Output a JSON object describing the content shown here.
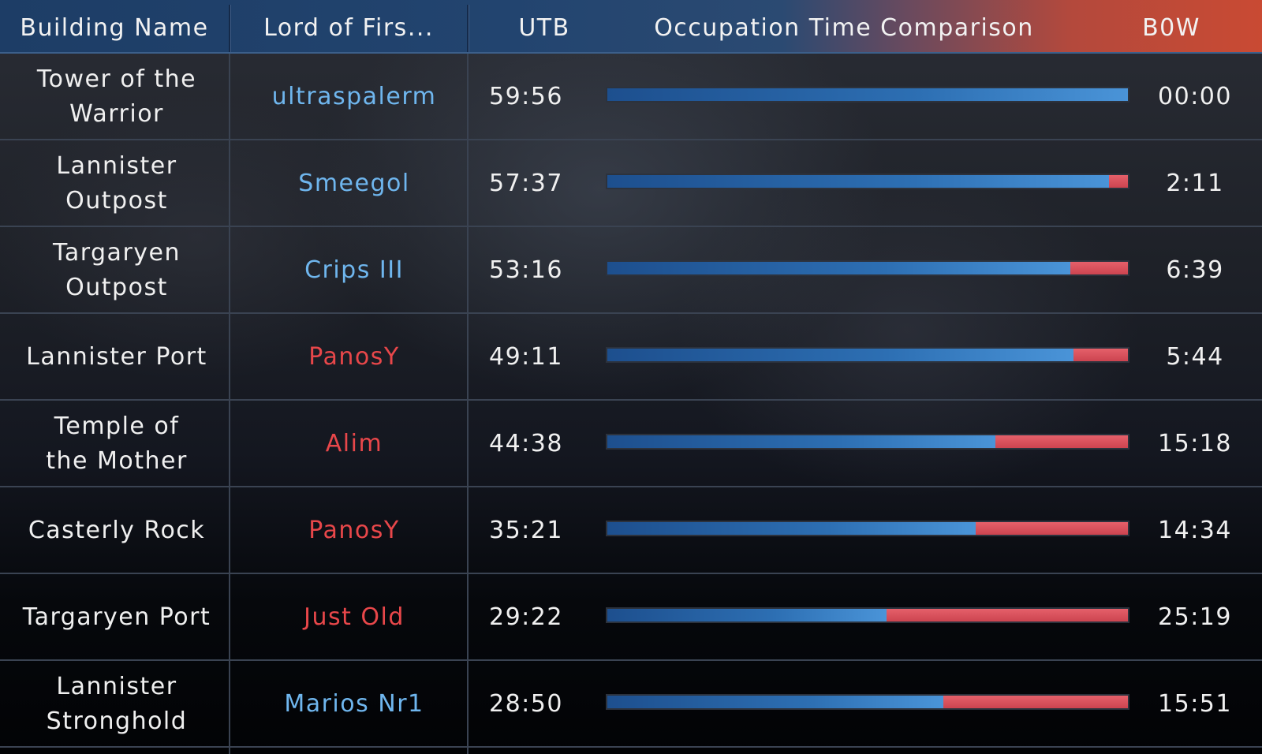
{
  "header": {
    "building_name": "Building Name",
    "lord": "Lord of Firs...",
    "utb": "UTB",
    "comparison": "Occupation Time Comparison",
    "bow": "B0W"
  },
  "colors": {
    "team_blue": "#6fb6ee",
    "team_red": "#e8474a",
    "bar_blue": "#2d6fb3",
    "bar_red": "#d84c58"
  },
  "rows": [
    {
      "name": "Tower of the Warrior",
      "lord": "ultraspalerm",
      "lord_team": "blue",
      "utb": "59:56",
      "bow": "00:00",
      "utb_share": 1.0
    },
    {
      "name": "Lannister Outpost",
      "lord": "Smeegol",
      "lord_team": "blue",
      "utb": "57:37",
      "bow": "2:11",
      "utb_share": 0.963
    },
    {
      "name": "Targaryen Outpost",
      "lord": "Crips III",
      "lord_team": "blue",
      "utb": "53:16",
      "bow": "6:39",
      "utb_share": 0.889
    },
    {
      "name": "Lannister Port",
      "lord": "PanosY",
      "lord_team": "red",
      "utb": "49:11",
      "bow": "5:44",
      "utb_share": 0.896
    },
    {
      "name": "Temple of the Mother",
      "lord": "Alim",
      "lord_team": "red",
      "utb": "44:38",
      "bow": "15:18",
      "utb_share": 0.745
    },
    {
      "name": "Casterly Rock",
      "lord": "PanosY",
      "lord_team": "red",
      "utb": "35:21",
      "bow": "14:34",
      "utb_share": 0.708
    },
    {
      "name": "Targaryen Port",
      "lord": "Just Old",
      "lord_team": "red",
      "utb": "29:22",
      "bow": "25:19",
      "utb_share": 0.537
    },
    {
      "name": "Lannister Stronghold",
      "lord": "Marios Nr1",
      "lord_team": "blue",
      "utb": "28:50",
      "bow": "15:51",
      "utb_share": 0.645
    }
  ]
}
